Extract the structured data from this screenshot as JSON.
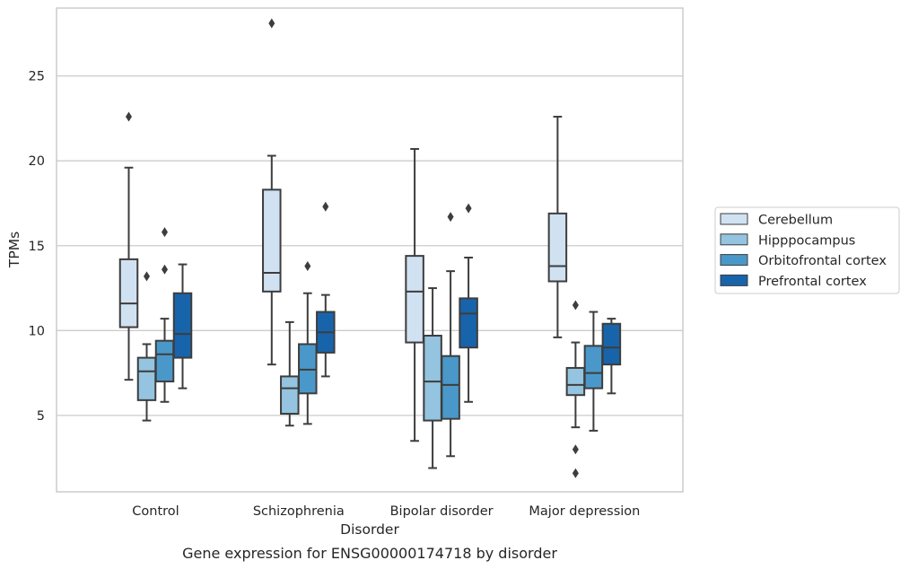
{
  "caption": "Gene expression for ENSG00000174718 by disorder",
  "colors": {
    "Cerebellum": "#d0e1f2",
    "Hipppocampus": "#94c4df",
    "Orbitofrontal cortex": "#4a98c9",
    "Prefrontal cortex": "#1764ab",
    "grid": "#cccccc",
    "box_edge": "#3d3d3d"
  },
  "chart_data": {
    "type": "box",
    "title": "",
    "xlabel": "Disorder",
    "ylabel": "TPMs",
    "ylim": [
      0.5,
      29.0
    ],
    "yticks": [
      5,
      10,
      15,
      20,
      25
    ],
    "grid": "horizontal",
    "legend_position": "right",
    "categories": [
      "Control",
      "Schizophrenia",
      "Bipolar disorder",
      "Major depression"
    ],
    "series": [
      {
        "name": "Cerebellum",
        "boxes": [
          {
            "whisker_low": 7.1,
            "q1": 10.2,
            "median": 11.6,
            "q3": 14.2,
            "whisker_high": 19.6,
            "outliers": [
              22.6
            ]
          },
          {
            "whisker_low": 8.0,
            "q1": 12.3,
            "median": 13.4,
            "q3": 18.3,
            "whisker_high": 20.3,
            "outliers": [
              28.1
            ]
          },
          {
            "whisker_low": 3.5,
            "q1": 9.3,
            "median": 12.3,
            "q3": 14.4,
            "whisker_high": 20.7,
            "outliers": []
          },
          {
            "whisker_low": 9.6,
            "q1": 12.9,
            "median": 13.8,
            "q3": 16.9,
            "whisker_high": 22.6,
            "outliers": []
          }
        ]
      },
      {
        "name": "Hipppocampus",
        "boxes": [
          {
            "whisker_low": 4.7,
            "q1": 5.9,
            "median": 7.6,
            "q3": 8.4,
            "whisker_high": 9.2,
            "outliers": [
              13.2
            ]
          },
          {
            "whisker_low": 4.4,
            "q1": 5.1,
            "median": 6.6,
            "q3": 7.3,
            "whisker_high": 10.5,
            "outliers": []
          },
          {
            "whisker_low": 1.9,
            "q1": 4.7,
            "median": 7.0,
            "q3": 9.7,
            "whisker_high": 12.5,
            "outliers": []
          },
          {
            "whisker_low": 4.3,
            "q1": 6.2,
            "median": 6.8,
            "q3": 7.8,
            "whisker_high": 9.3,
            "outliers": [
              11.5,
              3.0,
              1.6
            ]
          }
        ]
      },
      {
        "name": "Orbitofrontal cortex",
        "boxes": [
          {
            "whisker_low": 5.8,
            "q1": 7.0,
            "median": 8.6,
            "q3": 9.4,
            "whisker_high": 10.7,
            "outliers": [
              15.8,
              13.6
            ]
          },
          {
            "whisker_low": 4.5,
            "q1": 6.3,
            "median": 7.7,
            "q3": 9.2,
            "whisker_high": 12.2,
            "outliers": [
              13.8
            ]
          },
          {
            "whisker_low": 2.6,
            "q1": 4.8,
            "median": 6.8,
            "q3": 8.5,
            "whisker_high": 13.5,
            "outliers": [
              16.7
            ]
          },
          {
            "whisker_low": 4.1,
            "q1": 6.6,
            "median": 7.5,
            "q3": 9.1,
            "whisker_high": 11.1,
            "outliers": []
          }
        ]
      },
      {
        "name": "Prefrontal cortex",
        "boxes": [
          {
            "whisker_low": 6.6,
            "q1": 8.4,
            "median": 9.8,
            "q3": 12.2,
            "whisker_high": 13.9,
            "outliers": []
          },
          {
            "whisker_low": 7.3,
            "q1": 8.7,
            "median": 9.9,
            "q3": 11.1,
            "whisker_high": 12.1,
            "outliers": [
              17.3
            ]
          },
          {
            "whisker_low": 5.8,
            "q1": 9.0,
            "median": 11.0,
            "q3": 11.9,
            "whisker_high": 14.3,
            "outliers": [
              17.2
            ]
          },
          {
            "whisker_low": 6.3,
            "q1": 8.0,
            "median": 9.0,
            "q3": 10.4,
            "whisker_high": 10.7,
            "outliers": []
          }
        ]
      }
    ]
  }
}
